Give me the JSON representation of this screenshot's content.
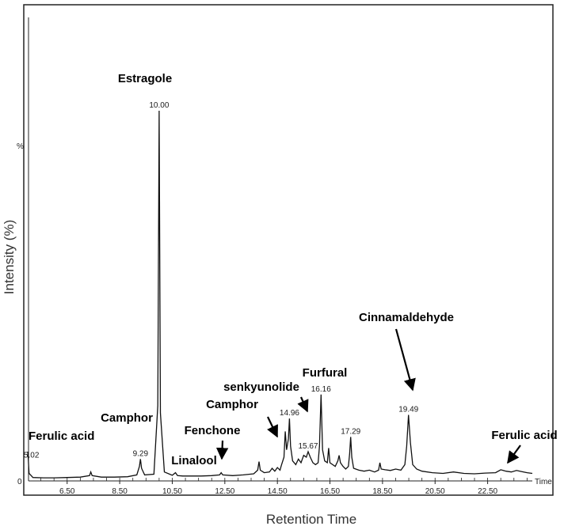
{
  "chart_data": {
    "type": "line",
    "title": "",
    "xlabel": "Retention Time",
    "ylabel": "Intensity (%)",
    "x_unit_label": "Time",
    "y_marker": "%",
    "y_zero": "0",
    "xlim": [
      5.0,
      24.2
    ],
    "ylim": [
      0,
      100
    ],
    "x_ticks": [
      "6.50",
      "8.50",
      "10.50",
      "12.50",
      "14.50",
      "16.50",
      "18.50",
      "20.50",
      "22.50"
    ],
    "x_tick_values": [
      6.5,
      8.5,
      10.5,
      12.5,
      14.5,
      16.5,
      18.5,
      20.5,
      22.5
    ],
    "peak_labels": [
      {
        "text": "5.02",
        "x": 5.02,
        "y": 5.5
      },
      {
        "text": "9.29",
        "x": 9.29,
        "y": 5.5
      },
      {
        "text": "10.00",
        "x": 10.0,
        "y": 100
      },
      {
        "text": "14.96",
        "x": 14.96,
        "y": 16.5
      },
      {
        "text": "15.67",
        "x": 15.67,
        "y": 7.5
      },
      {
        "text": "16.16",
        "x": 16.16,
        "y": 23.0
      },
      {
        "text": "17.29",
        "x": 17.29,
        "y": 11.5
      },
      {
        "text": "19.49",
        "x": 19.49,
        "y": 17.5
      }
    ],
    "annotations": [
      {
        "text": "Estragole",
        "peak": 10.0
      },
      {
        "text": "Ferulic acid",
        "peak": 5.02
      },
      {
        "text": "Camphor",
        "peak": 9.29
      },
      {
        "text": "Linalool",
        "peak": 10.6
      },
      {
        "text": "Fenchone",
        "peak": 12.35
      },
      {
        "text": "Camphor",
        "peak": 14.6
      },
      {
        "text": "senkyunolide",
        "peak": 15.6
      },
      {
        "text": "Furfural",
        "peak": 16.16
      },
      {
        "text": "Cinnamaldehyde",
        "peak": 19.49
      },
      {
        "text": "Ferulic acid",
        "peak": 23.1
      }
    ],
    "series": [
      {
        "x": [
          5.0,
          5.02,
          5.05,
          5.2,
          5.6,
          6.0,
          6.5,
          7.0,
          7.35,
          7.4,
          7.45,
          7.8,
          8.3,
          8.8,
          9.15,
          9.25,
          9.29,
          9.33,
          9.45,
          9.8,
          9.95,
          10.0,
          10.05,
          10.2,
          10.5,
          10.62,
          10.7,
          10.9,
          11.2,
          11.6,
          12.0,
          12.3,
          12.36,
          12.42,
          12.8,
          13.2,
          13.6,
          13.75,
          13.8,
          13.85,
          14.0,
          14.2,
          14.3,
          14.4,
          14.5,
          14.6,
          14.65,
          14.75,
          14.8,
          14.85,
          14.92,
          14.96,
          15.0,
          15.08,
          15.2,
          15.3,
          15.4,
          15.5,
          15.6,
          15.67,
          15.75,
          15.85,
          15.95,
          16.05,
          16.1,
          16.16,
          16.22,
          16.3,
          16.4,
          16.45,
          16.5,
          16.6,
          16.7,
          16.8,
          16.85,
          16.9,
          17.0,
          17.1,
          17.2,
          17.25,
          17.29,
          17.33,
          17.4,
          17.6,
          17.8,
          18.0,
          18.2,
          18.35,
          18.4,
          18.45,
          18.6,
          18.8,
          19.0,
          19.2,
          19.35,
          19.42,
          19.49,
          19.56,
          19.65,
          19.8,
          20.0,
          20.4,
          20.8,
          21.2,
          21.6,
          22.0,
          22.4,
          22.8,
          23.0,
          23.2,
          23.4,
          23.6,
          23.8,
          24.0,
          24.2
        ],
        "y": [
          7.5,
          5.5,
          1.6,
          0.5,
          0.4,
          0.4,
          0.5,
          0.6,
          1.0,
          2.0,
          1.0,
          0.6,
          0.6,
          0.7,
          1.2,
          3.5,
          5.5,
          3.0,
          1.2,
          1.4,
          20.0,
          100,
          18.0,
          2.0,
          1.1,
          1.8,
          1.0,
          0.9,
          0.9,
          0.9,
          1.0,
          1.2,
          1.8,
          1.2,
          1.0,
          1.2,
          1.5,
          2.5,
          4.8,
          2.5,
          1.8,
          2.0,
          3.0,
          2.2,
          3.2,
          2.5,
          3.8,
          6.0,
          13.0,
          8.0,
          11.0,
          16.5,
          9.0,
          5.0,
          4.0,
          5.5,
          4.5,
          6.5,
          6.0,
          7.5,
          6.0,
          4.5,
          4.0,
          4.5,
          9.0,
          23.0,
          8.0,
          5.0,
          4.5,
          8.5,
          4.5,
          4.0,
          3.5,
          5.0,
          6.5,
          4.5,
          3.5,
          2.8,
          3.5,
          7.0,
          11.5,
          6.0,
          3.0,
          2.5,
          2.2,
          2.5,
          2.0,
          2.5,
          4.5,
          2.8,
          2.6,
          2.4,
          2.8,
          2.5,
          4.0,
          9.0,
          17.5,
          10.0,
          4.0,
          2.8,
          2.2,
          1.8,
          1.6,
          2.0,
          1.6,
          1.5,
          1.7,
          1.8,
          2.6,
          2.2,
          2.0,
          2.4,
          2.1,
          1.8,
          1.6
        ]
      }
    ]
  }
}
